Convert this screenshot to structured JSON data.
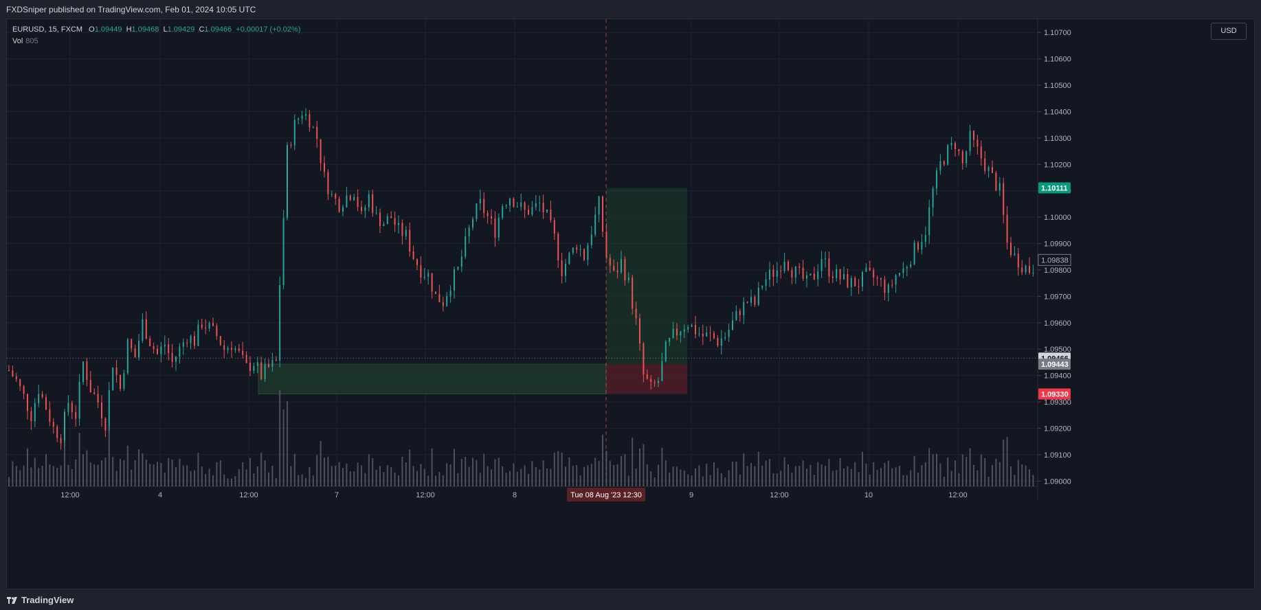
{
  "header": {
    "publish_text": "FXDSniper published on TradingView.com, Feb 01, 2024 10:05 UTC"
  },
  "legend": {
    "symbol": "EURUSD, 15, FXCM",
    "open_label": "O",
    "open": "1.09449",
    "high_label": "H",
    "high": "1.09468",
    "low_label": "L",
    "low": "1.09429",
    "close_label": "C",
    "close": "1.09466",
    "change": "+0.00017 (+0.02%)",
    "vol_label": "Vol",
    "vol_value": "805"
  },
  "currency_button": "USD",
  "footer": {
    "brand": "TradingView"
  },
  "colors": {
    "background": "#131722",
    "up": "#26a69a",
    "down": "#ef5350",
    "target_zone": "#1e3a2a",
    "stop_zone": "#4a1c22",
    "price_up_label": "#089981",
    "price_down_label": "#f23645",
    "grid": "#1f2330"
  },
  "chart_data": {
    "type": "candlestick",
    "symbol": "EURUSD",
    "timeframe": "15",
    "ylim": [
      1.0898,
      1.1075
    ],
    "y_ticks": [
      "1.10700",
      "1.10600",
      "1.10500",
      "1.10400",
      "1.10300",
      "1.10200",
      "1.10100",
      "1.10000",
      "1.09900",
      "1.09800",
      "1.09700",
      "1.09600",
      "1.09500",
      "1.09400",
      "1.09300",
      "1.09200",
      "1.09100",
      "1.09000"
    ],
    "x_ticks": [
      "12:00",
      "4",
      "12:00",
      "7",
      "12:00",
      "8",
      "9",
      "12:00",
      "10",
      "12:00"
    ],
    "crosshair_label": "Tue 08 Aug '23   12:30",
    "price_labels": {
      "target": "1.10111",
      "last": "1.09466",
      "entry": "1.09443",
      "stop": "1.09330",
      "current_marker": "1.09838"
    },
    "price_path": [
      [
        0,
        1.0942
      ],
      [
        2,
        1.0938
      ],
      [
        4,
        1.0932
      ],
      [
        6,
        1.0925
      ],
      [
        8,
        1.0935
      ],
      [
        10,
        1.0928
      ],
      [
        12,
        1.092
      ],
      [
        14,
        1.0917
      ],
      [
        16,
        1.093
      ],
      [
        18,
        1.0925
      ],
      [
        20,
        1.0945
      ],
      [
        22,
        1.0935
      ],
      [
        24,
        1.093
      ],
      [
        26,
        1.0922
      ],
      [
        28,
        1.0945
      ],
      [
        30,
        1.0935
      ],
      [
        32,
        1.0952
      ],
      [
        34,
        1.0947
      ],
      [
        36,
        1.096
      ],
      [
        38,
        1.0953
      ],
      [
        40,
        1.0948
      ],
      [
        42,
        1.0952
      ],
      [
        44,
        1.0945
      ],
      [
        46,
        1.095
      ],
      [
        48,
        1.0955
      ],
      [
        50,
        1.0953
      ],
      [
        52,
        1.096
      ],
      [
        54,
        1.0958
      ],
      [
        56,
        1.0955
      ],
      [
        58,
        1.095
      ],
      [
        60,
        1.0952
      ],
      [
        62,
        1.0948
      ],
      [
        64,
        1.0943
      ],
      [
        66,
        1.0945
      ],
      [
        68,
        1.094
      ],
      [
        70,
        1.0943
      ],
      [
        72,
        1.0945
      ],
      [
        73,
        1.0975
      ],
      [
        74,
        1.1
      ],
      [
        75,
        1.1025
      ],
      [
        77,
        1.1035
      ],
      [
        79,
        1.104
      ],
      [
        81,
        1.1037
      ],
      [
        83,
        1.103
      ],
      [
        85,
        1.1015
      ],
      [
        87,
        1.1008
      ],
      [
        89,
        1.1005
      ],
      [
        91,
        1.1008
      ],
      [
        93,
        1.101
      ],
      [
        95,
        1.1
      ],
      [
        97,
        1.1008
      ],
      [
        99,
        1.1
      ],
      [
        101,
        1.0998
      ],
      [
        103,
        1.1
      ],
      [
        105,
        1.0995
      ],
      [
        107,
        1.0993
      ],
      [
        109,
        1.0985
      ],
      [
        111,
        1.098
      ],
      [
        113,
        1.0978
      ],
      [
        115,
        1.097
      ],
      [
        117,
        1.0968
      ],
      [
        119,
        1.0975
      ],
      [
        121,
        1.098
      ],
      [
        123,
        1.099
      ],
      [
        125,
        1.1
      ],
      [
        127,
        1.1005
      ],
      [
        129,
        1.1
      ],
      [
        131,
        1.0995
      ],
      [
        133,
        1.1005
      ],
      [
        135,
        1.1008
      ],
      [
        137,
        1.1005
      ],
      [
        139,
        1.1002
      ],
      [
        141,
        1.1003
      ],
      [
        143,
        1.1005
      ],
      [
        145,
        1.1
      ],
      [
        147,
        1.0992
      ],
      [
        149,
        1.098
      ],
      [
        151,
        1.0985
      ],
      [
        153,
        1.099
      ],
      [
        155,
        1.0985
      ],
      [
        157,
        1.0995
      ],
      [
        159,
        1.1005
      ],
      [
        161,
        1.0985
      ],
      [
        163,
        1.0978
      ],
      [
        165,
        1.0983
      ],
      [
        167,
        1.0975
      ],
      [
        169,
        1.096
      ],
      [
        171,
        1.094
      ],
      [
        173,
        1.0935
      ],
      [
        175,
        1.0938
      ],
      [
        177,
        1.095
      ],
      [
        179,
        1.0955
      ],
      [
        181,
        1.0958
      ],
      [
        183,
        1.096
      ],
      [
        185,
        1.0957
      ],
      [
        187,
        1.0955
      ],
      [
        189,
        1.0955
      ],
      [
        191,
        1.0953
      ],
      [
        193,
        1.0955
      ],
      [
        195,
        1.096
      ],
      [
        197,
        1.0965
      ],
      [
        199,
        1.0968
      ],
      [
        201,
        1.0967
      ],
      [
        203,
        1.0975
      ],
      [
        205,
        1.0978
      ],
      [
        207,
        1.098
      ],
      [
        209,
        1.0985
      ],
      [
        211,
        1.098
      ],
      [
        213,
        1.0978
      ],
      [
        215,
        1.0975
      ],
      [
        217,
        1.0978
      ],
      [
        219,
        1.0985
      ],
      [
        221,
        1.098
      ],
      [
        223,
        1.0978
      ],
      [
        225,
        1.0976
      ],
      [
        227,
        1.0975
      ],
      [
        229,
        1.0975
      ],
      [
        231,
        1.0978
      ],
      [
        233,
        1.0977
      ],
      [
        235,
        1.0975
      ],
      [
        237,
        1.0972
      ],
      [
        239,
        1.0978
      ],
      [
        241,
        1.098
      ],
      [
        243,
        1.0985
      ],
      [
        245,
        1.099
      ],
      [
        247,
        1.0995
      ],
      [
        249,
        1.101
      ],
      [
        251,
        1.102
      ],
      [
        253,
        1.1025
      ],
      [
        255,
        1.1028
      ],
      [
        257,
        1.102
      ],
      [
        259,
        1.103
      ],
      [
        261,
        1.1025
      ],
      [
        263,
        1.102
      ],
      [
        265,
        1.1015
      ],
      [
        267,
        1.101
      ],
      [
        269,
        1.099
      ],
      [
        271,
        1.0985
      ],
      [
        273,
        1.0982
      ],
      [
        275,
        1.098
      ],
      [
        277,
        1.0982
      ]
    ]
  }
}
